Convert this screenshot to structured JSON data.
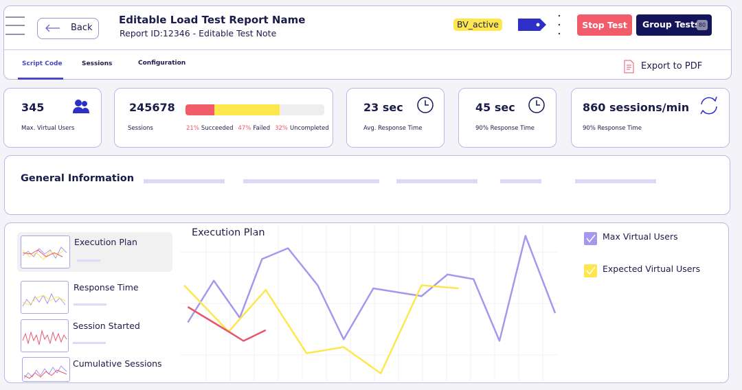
{
  "header": {
    "back": "Back",
    "title": "Editable Load Test Report Name",
    "subtitle": "Report ID:12346 - Editable Test Note",
    "badge": "BV_active",
    "stop_button": "Stop Test",
    "group_button": "Group Tests",
    "group_count": 80
  },
  "tabs": [
    "Script Code",
    "Sessions",
    "Configuration"
  ],
  "export": "Export to PDF",
  "stats": [
    {
      "value": 345,
      "label": "Max. Virtual Users"
    },
    {
      "value": 245678,
      "label": "Sessions"
    },
    {
      "value": "23 sec",
      "label": "Avg. Response Time"
    },
    {
      "value": "45 sec",
      "label": "90% Response Time"
    },
    {
      "value": "860 sessions/min",
      "label": "90% Response Time"
    }
  ],
  "sessions_breakdown": {
    "values": [
      21,
      47,
      32
    ],
    "value_labels": [
      "21%",
      "47%",
      "32%"
    ],
    "labels": [
      "Succeeded",
      "Failed",
      "Uncompleted"
    ],
    "colors": [
      "#f25c6a",
      "#fde74c",
      "#eeeeee"
    ]
  },
  "general_information": {
    "title": "General Information"
  },
  "chart_list": [
    "Execution Plan",
    "Response Time",
    "Session Started",
    "Cumulative Sessions"
  ],
  "chart_data": {
    "type": "line",
    "title": "Execution Plan",
    "xlim": [
      0,
      100
    ],
    "ylim": [
      0,
      100
    ],
    "grid": true,
    "series": [
      {
        "name": "Max Virtual Users",
        "color": "#a597ee",
        "x": [
          1,
          8,
          15,
          21,
          28,
          36,
          43,
          51,
          64,
          71,
          78,
          85,
          92,
          100
        ],
        "values": [
          38,
          65,
          41,
          79,
          86,
          62,
          27,
          60,
          55,
          69,
          66,
          26,
          94,
          44
        ]
      },
      {
        "name": "Expected Virtual Users",
        "color": "#fde74c",
        "x": [
          0,
          12,
          22,
          33,
          43,
          53,
          64,
          74
        ],
        "values": [
          62,
          32,
          59,
          18,
          22,
          5,
          62,
          60
        ]
      },
      {
        "color": "#e8566a",
        "x": [
          1,
          12,
          16,
          22
        ],
        "values": [
          48,
          32,
          26,
          33
        ]
      }
    ]
  }
}
